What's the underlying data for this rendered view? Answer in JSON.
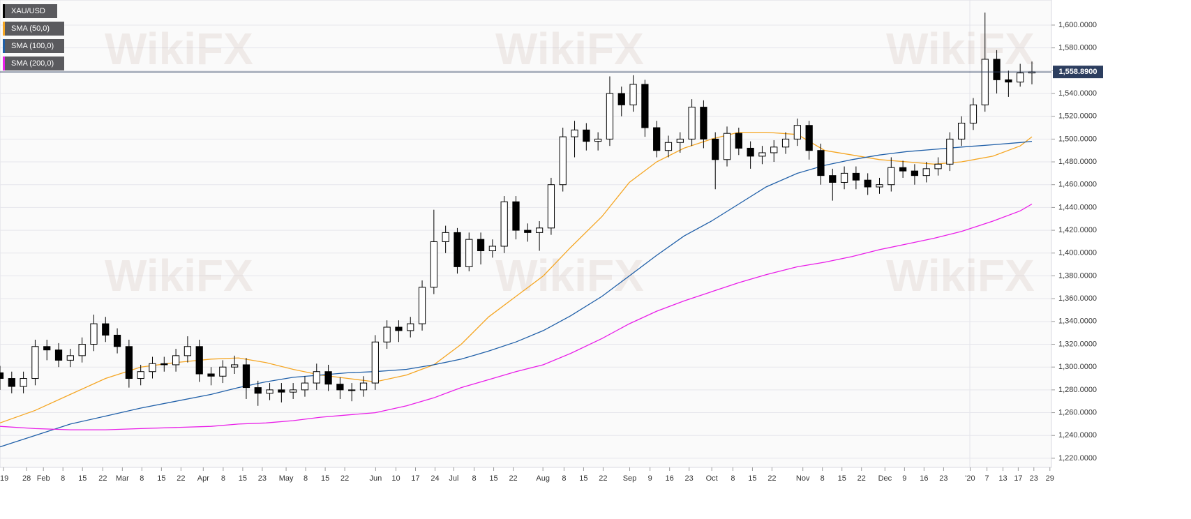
{
  "chart_data": {
    "type": "candlestick",
    "watermark": "WikiFX",
    "series": [
      {
        "name": "XAU/USD",
        "color": "#000000",
        "up_color": "#ffffff",
        "x": [
          0,
          3,
          6,
          9,
          12,
          15,
          18,
          21,
          24,
          27,
          30,
          33,
          36,
          39,
          42,
          45,
          48,
          51,
          54,
          57,
          60,
          63,
          66,
          69,
          72,
          75,
          78,
          81,
          84,
          87,
          90,
          93,
          96,
          99,
          102,
          105,
          108,
          111,
          114,
          117,
          120,
          123,
          126,
          129,
          132,
          135,
          138,
          141,
          144,
          147,
          150,
          153,
          156,
          159,
          162,
          165,
          168,
          171,
          174,
          177,
          180,
          183,
          186,
          189,
          192,
          195,
          198,
          201,
          204,
          207,
          210,
          213,
          216,
          219,
          222,
          225,
          228,
          231,
          234,
          237,
          240,
          243,
          246,
          249,
          252,
          255,
          258,
          261,
          264
        ],
        "open": [
          1295,
          1290,
          1283,
          1290,
          1318,
          1315,
          1306,
          1310,
          1320,
          1338,
          1328,
          1318,
          1290,
          1296,
          1303,
          1302,
          1310,
          1318,
          1294,
          1292,
          1300,
          1302,
          1282,
          1277,
          1280,
          1278,
          1280,
          1286,
          1296,
          1285,
          1280,
          1280,
          1286,
          1322,
          1335,
          1332,
          1338,
          1370,
          1410,
          1418,
          1388,
          1412,
          1402,
          1406,
          1445,
          1420,
          1418,
          1422,
          1460,
          1502,
          1508,
          1498,
          1500,
          1540,
          1530,
          1548,
          1510,
          1490,
          1497,
          1500,
          1528,
          1500,
          1482,
          1505,
          1492,
          1485,
          1488,
          1493,
          1500,
          1512,
          1490,
          1468,
          1462,
          1470,
          1464,
          1458,
          1460,
          1475,
          1472,
          1468,
          1474,
          1478,
          1500,
          1514,
          1530,
          1570,
          1552,
          1550,
          1558
        ],
        "high": [
          1301,
          1296,
          1296,
          1324,
          1324,
          1321,
          1316,
          1326,
          1346,
          1344,
          1334,
          1324,
          1302,
          1309,
          1309,
          1316,
          1327,
          1324,
          1300,
          1306,
          1310,
          1308,
          1288,
          1286,
          1286,
          1286,
          1292,
          1303,
          1302,
          1291,
          1286,
          1292,
          1328,
          1341,
          1341,
          1344,
          1376,
          1438,
          1424,
          1422,
          1418,
          1418,
          1412,
          1450,
          1450,
          1426,
          1428,
          1466,
          1510,
          1516,
          1514,
          1506,
          1555,
          1546,
          1556,
          1552,
          1516,
          1503,
          1506,
          1535,
          1534,
          1506,
          1511,
          1510,
          1498,
          1494,
          1499,
          1506,
          1518,
          1516,
          1496,
          1474,
          1476,
          1476,
          1470,
          1466,
          1484,
          1481,
          1478,
          1480,
          1484,
          1506,
          1520,
          1536,
          1611,
          1578,
          1560,
          1566,
          1568
        ],
        "low": [
          1280,
          1277,
          1277,
          1284,
          1306,
          1300,
          1300,
          1304,
          1314,
          1322,
          1312,
          1282,
          1284,
          1290,
          1296,
          1296,
          1304,
          1287,
          1284,
          1286,
          1294,
          1272,
          1266,
          1271,
          1269,
          1272,
          1274,
          1280,
          1279,
          1272,
          1270,
          1274,
          1280,
          1316,
          1322,
          1326,
          1332,
          1364,
          1400,
          1382,
          1384,
          1390,
          1396,
          1400,
          1412,
          1410,
          1402,
          1416,
          1454,
          1484,
          1490,
          1490,
          1494,
          1520,
          1524,
          1502,
          1484,
          1484,
          1488,
          1494,
          1492,
          1456,
          1476,
          1486,
          1474,
          1478,
          1480,
          1487,
          1494,
          1482,
          1460,
          1446,
          1456,
          1456,
          1451,
          1452,
          1454,
          1466,
          1460,
          1462,
          1468,
          1472,
          1494,
          1508,
          1524,
          1540,
          1537,
          1546,
          1548
        ],
        "close": [
          1290,
          1283,
          1290,
          1318,
          1315,
          1306,
          1310,
          1320,
          1338,
          1328,
          1318,
          1290,
          1296,
          1303,
          1302,
          1310,
          1318,
          1294,
          1292,
          1300,
          1302,
          1282,
          1277,
          1280,
          1278,
          1280,
          1286,
          1296,
          1285,
          1280,
          1280,
          1286,
          1322,
          1335,
          1332,
          1338,
          1370,
          1410,
          1418,
          1388,
          1412,
          1402,
          1406,
          1445,
          1420,
          1418,
          1422,
          1460,
          1502,
          1508,
          1498,
          1500,
          1540,
          1530,
          1548,
          1510,
          1490,
          1497,
          1500,
          1528,
          1500,
          1482,
          1505,
          1492,
          1485,
          1488,
          1493,
          1500,
          1512,
          1490,
          1468,
          1462,
          1470,
          1464,
          1458,
          1460,
          1475,
          1472,
          1468,
          1474,
          1478,
          1500,
          1514,
          1530,
          1570,
          1552,
          1550,
          1558,
          1559
        ]
      }
    ],
    "overlays": [
      {
        "name": "SMA (50,0)",
        "color": "#f5a623",
        "x": [
          0,
          9,
          18,
          27,
          36,
          45,
          54,
          61,
          68,
          75,
          82,
          89,
          96,
          104,
          111,
          118,
          125,
          132,
          139,
          146,
          154,
          161,
          168,
          175,
          182,
          189,
          196,
          204,
          211,
          218,
          225,
          232,
          239,
          246,
          254,
          261,
          264
        ],
        "values": [
          1251,
          1262,
          1276,
          1290,
          1300,
          1304,
          1307,
          1308,
          1304,
          1298,
          1293,
          1290,
          1287,
          1293,
          1302,
          1320,
          1344,
          1362,
          1380,
          1405,
          1432,
          1462,
          1480,
          1492,
          1500,
          1506,
          1506,
          1504,
          1490,
          1486,
          1482,
          1480,
          1478,
          1480,
          1485,
          1494,
          1502
        ]
      },
      {
        "name": "SMA (100,0)",
        "color": "#1f5fa8",
        "x": [
          0,
          9,
          18,
          27,
          36,
          45,
          54,
          61,
          68,
          75,
          82,
          89,
          96,
          104,
          111,
          118,
          125,
          132,
          139,
          146,
          154,
          161,
          168,
          175,
          182,
          189,
          196,
          204,
          211,
          218,
          225,
          232,
          239,
          246,
          254,
          261,
          264
        ],
        "values": [
          1230,
          1240,
          1250,
          1257,
          1264,
          1270,
          1276,
          1282,
          1287,
          1291,
          1293,
          1295,
          1296,
          1298,
          1302,
          1307,
          1314,
          1322,
          1332,
          1345,
          1362,
          1380,
          1398,
          1415,
          1428,
          1443,
          1458,
          1470,
          1477,
          1482,
          1486,
          1489,
          1491,
          1493,
          1495,
          1497,
          1498
        ]
      },
      {
        "name": "SMA (200,0)",
        "color": "#e91ee8",
        "x": [
          0,
          9,
          18,
          27,
          36,
          45,
          54,
          61,
          68,
          75,
          82,
          89,
          96,
          104,
          111,
          118,
          125,
          132,
          139,
          146,
          154,
          161,
          168,
          175,
          182,
          189,
          196,
          204,
          211,
          218,
          225,
          232,
          239,
          246,
          254,
          261,
          264
        ],
        "values": [
          1248,
          1246,
          1245,
          1245,
          1246,
          1247,
          1248,
          1250,
          1251,
          1253,
          1256,
          1258,
          1260,
          1266,
          1273,
          1282,
          1289,
          1296,
          1302,
          1312,
          1325,
          1338,
          1349,
          1358,
          1366,
          1374,
          1381,
          1388,
          1392,
          1397,
          1403,
          1408,
          1413,
          1419,
          1428,
          1437,
          1443
        ]
      }
    ],
    "last_price": {
      "value": 1558.89,
      "label": "1,558.8900"
    },
    "xlim": [
      0,
      269
    ],
    "ylim": [
      1212,
      1622
    ],
    "grid": true,
    "xticks": [
      {
        "value": 0.9,
        "label": "'19"
      },
      {
        "value": 6.8,
        "label": "28"
      },
      {
        "value": 11.1,
        "label": "Feb"
      },
      {
        "value": 16.1,
        "label": "8"
      },
      {
        "value": 21.1,
        "label": "15"
      },
      {
        "value": 26.3,
        "label": "22"
      },
      {
        "value": 31.3,
        "label": "Mar"
      },
      {
        "value": 36.3,
        "label": "8"
      },
      {
        "value": 41.3,
        "label": "15"
      },
      {
        "value": 46.3,
        "label": "22"
      },
      {
        "value": 52,
        "label": "Apr"
      },
      {
        "value": 57.1,
        "label": "8"
      },
      {
        "value": 62.1,
        "label": "15"
      },
      {
        "value": 67.1,
        "label": "23"
      },
      {
        "value": 73.2,
        "label": "May"
      },
      {
        "value": 78.2,
        "label": "8"
      },
      {
        "value": 83.2,
        "label": "15"
      },
      {
        "value": 88.2,
        "label": "22"
      },
      {
        "value": 96.1,
        "label": "Jun"
      },
      {
        "value": 101.3,
        "label": "10"
      },
      {
        "value": 106.3,
        "label": "17"
      },
      {
        "value": 111.3,
        "label": "24"
      },
      {
        "value": 116.1,
        "label": "Jul"
      },
      {
        "value": 121.3,
        "label": "8"
      },
      {
        "value": 126.3,
        "label": "15"
      },
      {
        "value": 131.3,
        "label": "22"
      },
      {
        "value": 138.9,
        "label": "Aug"
      },
      {
        "value": 144.3,
        "label": "8"
      },
      {
        "value": 149.3,
        "label": "15"
      },
      {
        "value": 154.3,
        "label": "22"
      },
      {
        "value": 161.1,
        "label": "Sep"
      },
      {
        "value": 166.3,
        "label": "9"
      },
      {
        "value": 171.3,
        "label": "16"
      },
      {
        "value": 176.3,
        "label": "23"
      },
      {
        "value": 182.1,
        "label": "Oct"
      },
      {
        "value": 187.5,
        "label": "8"
      },
      {
        "value": 192.5,
        "label": "15"
      },
      {
        "value": 197.5,
        "label": "22"
      },
      {
        "value": 205.4,
        "label": "Nov"
      },
      {
        "value": 210.4,
        "label": "8"
      },
      {
        "value": 215.4,
        "label": "15"
      },
      {
        "value": 220.4,
        "label": "22"
      },
      {
        "value": 226.4,
        "label": "Dec"
      },
      {
        "value": 231.4,
        "label": "9"
      },
      {
        "value": 236.4,
        "label": "16"
      },
      {
        "value": 241.4,
        "label": "23"
      },
      {
        "value": 248.2,
        "label": "'20"
      },
      {
        "value": 252.5,
        "label": "7"
      },
      {
        "value": 256.6,
        "label": "13"
      },
      {
        "value": 260.5,
        "label": "17"
      },
      {
        "value": 264.5,
        "label": "23"
      },
      {
        "value": 268.6,
        "label": "29"
      }
    ],
    "yticks": [
      {
        "value": 1220,
        "label": "1,220.0000"
      },
      {
        "value": 1240,
        "label": "1,240.0000"
      },
      {
        "value": 1260,
        "label": "1,260.0000"
      },
      {
        "value": 1280,
        "label": "1,280.0000"
      },
      {
        "value": 1300,
        "label": "1,300.0000"
      },
      {
        "value": 1320,
        "label": "1,320.0000"
      },
      {
        "value": 1340,
        "label": "1,340.0000"
      },
      {
        "value": 1360,
        "label": "1,360.0000"
      },
      {
        "value": 1380,
        "label": "1,380.0000"
      },
      {
        "value": 1400,
        "label": "1,400.0000"
      },
      {
        "value": 1420,
        "label": "1,420.0000"
      },
      {
        "value": 1440,
        "label": "1,440.0000"
      },
      {
        "value": 1460,
        "label": "1,460.0000"
      },
      {
        "value": 1480,
        "label": "1,480.0000"
      },
      {
        "value": 1500,
        "label": "1,500.0000"
      },
      {
        "value": 1520,
        "label": "1,520.0000"
      },
      {
        "value": 1540,
        "label": "1,540.0000"
      },
      {
        "value": 1560,
        "label": "1,560.0000"
      },
      {
        "value": 1580,
        "label": "1,580.0000"
      },
      {
        "value": 1600,
        "label": "1,600.0000"
      }
    ]
  }
}
